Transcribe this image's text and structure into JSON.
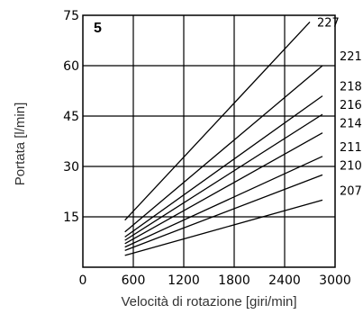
{
  "chart_data": {
    "type": "line",
    "panel_label": "5",
    "xlabel": "Velocità di rotazione [giri/min]",
    "ylabel": "Portata [l/min]",
    "xlim": [
      0,
      3000
    ],
    "ylim": [
      0,
      75
    ],
    "x_ticks": [
      0,
      600,
      1200,
      1800,
      2400,
      3000
    ],
    "y_ticks": [
      15,
      30,
      45,
      60,
      75
    ],
    "grid": true,
    "series": [
      {
        "name": "227",
        "points": [
          [
            500,
            14
          ],
          [
            2700,
            73
          ]
        ]
      },
      {
        "name": "221",
        "points": [
          [
            500,
            10.5
          ],
          [
            2850,
            60
          ]
        ]
      },
      {
        "name": "218",
        "points": [
          [
            500,
            9
          ],
          [
            2850,
            51
          ]
        ]
      },
      {
        "name": "216",
        "points": [
          [
            500,
            8
          ],
          [
            2850,
            45.5
          ]
        ]
      },
      {
        "name": "214",
        "points": [
          [
            500,
            7
          ],
          [
            2850,
            40
          ]
        ]
      },
      {
        "name": "211",
        "points": [
          [
            500,
            6
          ],
          [
            2850,
            33
          ]
        ]
      },
      {
        "name": "210",
        "points": [
          [
            500,
            5
          ],
          [
            2850,
            27.5
          ]
        ]
      },
      {
        "name": "207",
        "points": [
          [
            500,
            3.5
          ],
          [
            2850,
            20
          ]
        ]
      }
    ]
  }
}
